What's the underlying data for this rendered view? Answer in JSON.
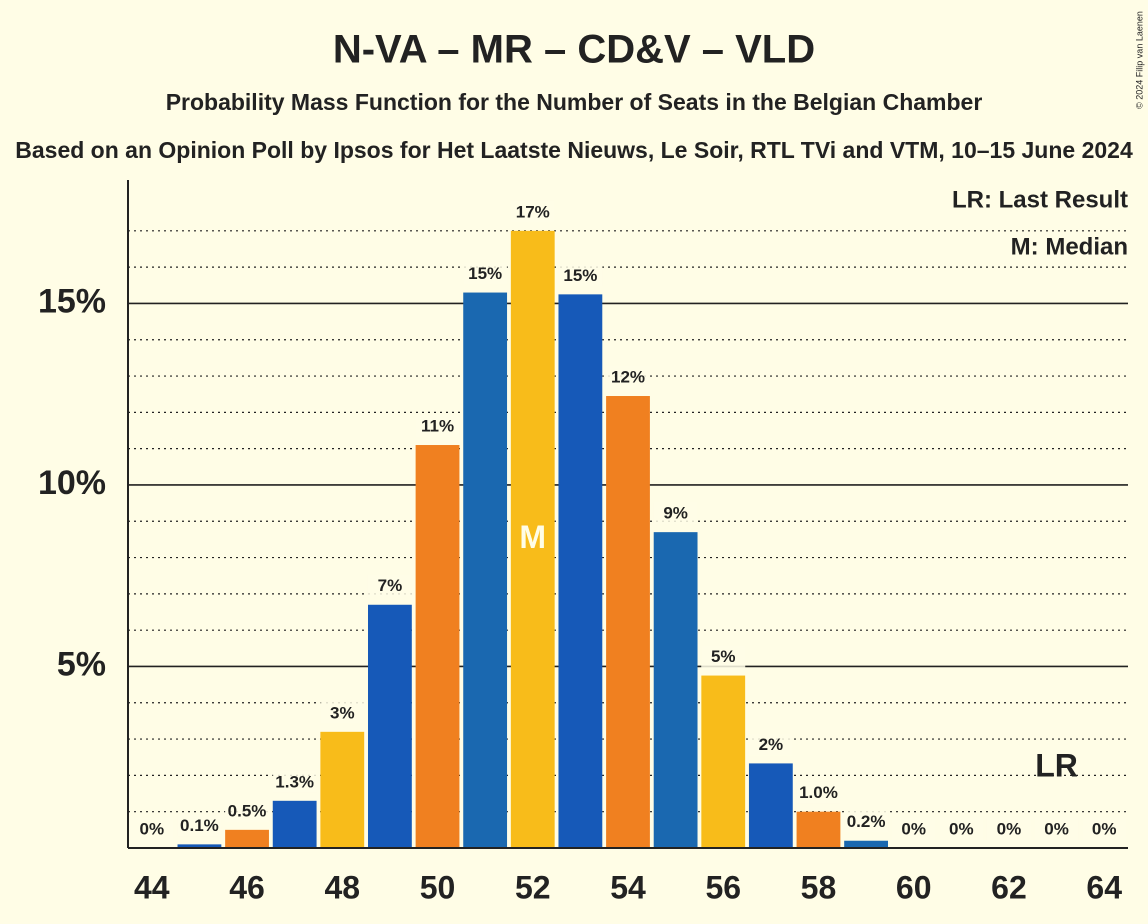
{
  "chart_data": {
    "type": "bar",
    "title": "N-VA – MR – CD&V – VLD",
    "subtitle": "Probability Mass Function for the Number of Seats in the Belgian Chamber",
    "subtitle2": "Based on an Opinion Poll by Ipsos for Het Laatste Nieuws, Le Soir, RTL TVi and VTM, 10–15 June 2024",
    "credit": "© 2024 Filip van Laenen",
    "x": [
      44,
      45,
      46,
      47,
      48,
      49,
      50,
      51,
      52,
      53,
      54,
      55,
      56,
      57,
      58,
      59,
      60,
      61,
      62,
      63,
      64
    ],
    "values": [
      0,
      0.1,
      0.5,
      1.3,
      3.2,
      6.7,
      11.1,
      15.3,
      17.0,
      15.25,
      12.45,
      8.7,
      4.75,
      2.33,
      1.0,
      0.2,
      0,
      0,
      0,
      0,
      0
    ],
    "value_labels": [
      "0%",
      "0.1%",
      "0.5%",
      "1.3%",
      "3%",
      "7%",
      "11%",
      "15%",
      "17%",
      "15%",
      "12%",
      "9%",
      "5%",
      "2%",
      "1.0%",
      "0.2%",
      "0%",
      "0%",
      "0%",
      "0%",
      "0%"
    ],
    "colors": [
      "#1a68b0",
      "#1659b8",
      "#f08020",
      "#1659b8",
      "#f8bc1a",
      "#1659b8",
      "#f08020",
      "#1a68b0",
      "#f8bc1a",
      "#1659b8",
      "#f08020",
      "#1a68b0",
      "#f8bc1a",
      "#1659b8",
      "#f08020",
      "#1a68b0",
      "#1659b8",
      "#1659b8",
      "#1659b8",
      "#1659b8",
      "#1659b8"
    ],
    "xlim": [
      43.5,
      64.5
    ],
    "xticks": [
      44,
      46,
      48,
      50,
      52,
      54,
      56,
      58,
      60,
      62,
      64
    ],
    "ylim": [
      0,
      18.4
    ],
    "yticks": [
      {
        "value": 5,
        "label": "5%"
      },
      {
        "value": 10,
        "label": "10%"
      },
      {
        "value": 15,
        "label": "15%"
      }
    ],
    "minor_yticks": [
      1,
      2,
      3,
      4,
      6,
      7,
      8,
      9,
      11,
      12,
      13,
      14,
      16,
      17
    ],
    "grid": true,
    "median": 52,
    "median_label": "M",
    "last_result": 63,
    "last_result_label": "LR",
    "legend": [
      "LR: Last Result",
      "M: Median"
    ]
  }
}
